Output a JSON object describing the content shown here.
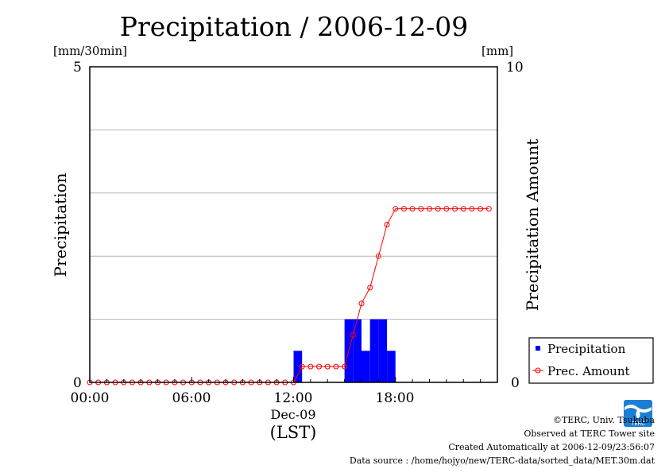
{
  "chart_data": {
    "type": "bar",
    "title": "Precipitation / 2006-12-09",
    "ylabel": "Precipitation",
    "y2label": "Precipitation Amount",
    "yunit": "[mm/30min]",
    "y2unit": "[mm]",
    "ylim": [
      0,
      5
    ],
    "y2lim": [
      0,
      10
    ],
    "xlim": [
      0,
      24
    ],
    "x_tick_labels": [
      "00:00",
      "06:00",
      "12:00",
      "18:00"
    ],
    "x_ticks_hours": [
      0,
      6,
      12,
      18
    ],
    "date_label": "Dec-09",
    "xlabel": "(LST)",
    "y_tick_labels": [
      "0",
      "5"
    ],
    "y2_tick_labels": [
      "0",
      "10"
    ],
    "grid": true,
    "legend_position": "bottom-right",
    "series": [
      {
        "name": "Precipitation",
        "kind": "bar",
        "axis": "left",
        "color": "#0000ff",
        "x": [
          12.0,
          12.5,
          15.0,
          15.5,
          16.0,
          16.5,
          17.0,
          17.5
        ],
        "values": [
          0.5,
          0,
          1.0,
          1.0,
          0.5,
          1.0,
          1.0,
          0.5
        ]
      },
      {
        "name": "Prec. Amount",
        "kind": "line",
        "axis": "right",
        "color": "#ff0000",
        "x": [
          0,
          0.5,
          1,
          1.5,
          2,
          2.5,
          3,
          3.5,
          4,
          4.5,
          5,
          5.5,
          6,
          6.5,
          7,
          7.5,
          8,
          8.5,
          9,
          9.5,
          10,
          10.5,
          11,
          11.5,
          12,
          12.5,
          13,
          13.5,
          14,
          14.5,
          15,
          15.5,
          16,
          16.5,
          17,
          17.5,
          18,
          18.5,
          19,
          19.5,
          20,
          20.5,
          21,
          21.5,
          22,
          22.5,
          23,
          23.5
        ],
        "values": [
          0,
          0,
          0,
          0,
          0,
          0,
          0,
          0,
          0,
          0,
          0,
          0,
          0,
          0,
          0,
          0,
          0,
          0,
          0,
          0,
          0,
          0,
          0,
          0,
          0,
          0.5,
          0.5,
          0.5,
          0.5,
          0.5,
          0.5,
          1.5,
          2.5,
          3.0,
          4.0,
          5.0,
          5.5,
          5.5,
          5.5,
          5.5,
          5.5,
          5.5,
          5.5,
          5.5,
          5.5,
          5.5,
          5.5,
          5.5
        ]
      }
    ]
  },
  "credits": {
    "copyright": "©TERC, Univ. Tsukuba",
    "observed": "Observed at TERC Tower site",
    "created": "Created Automatically at 2006-12-09/23:56:07",
    "source": "Data source : /home/hojyo/new/TERC-data/sorted_data/MET.30m.dat"
  },
  "logo": {
    "text": "TERC",
    "color": "#1a7fd4"
  }
}
